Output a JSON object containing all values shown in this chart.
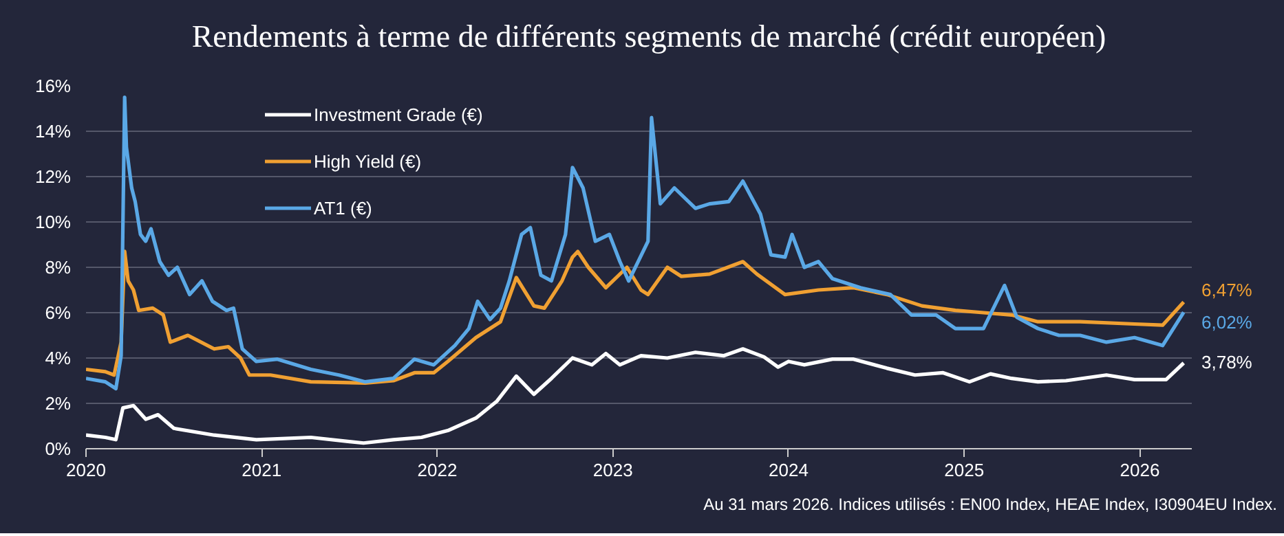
{
  "chart_data": {
    "type": "line",
    "title": "Rendements à terme de différents segments de marché (crédit européen)",
    "xlim": [
      2020,
      2026.3
    ],
    "xticks": [
      2020,
      2021,
      2022,
      2023,
      2024,
      2025,
      2026
    ],
    "ylim": [
      0,
      16
    ],
    "yticks": [
      {
        "value": 0,
        "label": "0%"
      },
      {
        "value": 2,
        "label": "2%"
      },
      {
        "value": 4,
        "label": "4%"
      },
      {
        "value": 6,
        "label": "6%"
      },
      {
        "value": 8,
        "label": "8%"
      },
      {
        "value": 10,
        "label": "10%"
      },
      {
        "value": 12,
        "label": "12%"
      },
      {
        "value": 14,
        "label": "14%"
      },
      {
        "value": 16,
        "label": "16%"
      }
    ],
    "grid": "y",
    "legend": "top left",
    "line_style": "solid",
    "series": [
      {
        "name": "Investment Grade (€)",
        "color": "#ffffff",
        "x": [
          2020,
          2020.11,
          2020.17,
          2020.21,
          2020.27,
          2020.34,
          2020.41,
          2020.5,
          2020.73,
          2020.97,
          2021.28,
          2021.58,
          2021.75,
          2021.91,
          2022.06,
          2022.22,
          2022.34,
          2022.45,
          2022.55,
          2022.65,
          2022.77,
          2022.88,
          2022.96,
          2023.04,
          2023.16,
          2023.31,
          2023.47,
          2023.63,
          2023.74,
          2023.86,
          2023.94,
          2024.0,
          2024.09,
          2024.25,
          2024.37,
          2024.56,
          2024.72,
          2024.88,
          2025.03,
          2025.15,
          2025.27,
          2025.42,
          2025.58,
          2025.81,
          2025.97,
          2026.15,
          2026.25
        ],
        "values": [
          0.6,
          0.5,
          0.4,
          1.8,
          1.9,
          1.3,
          1.5,
          0.9,
          0.6,
          0.4,
          0.5,
          0.25,
          0.4,
          0.5,
          0.8,
          1.35,
          2.1,
          3.2,
          2.4,
          3.1,
          4.0,
          3.7,
          4.2,
          3.7,
          4.1,
          4.0,
          4.25,
          4.1,
          4.4,
          4.05,
          3.6,
          3.85,
          3.7,
          3.95,
          3.95,
          3.55,
          3.25,
          3.35,
          2.95,
          3.3,
          3.1,
          2.95,
          3.0,
          3.25,
          3.05,
          3.05,
          3.78
        ],
        "value_labels": [
          null,
          null,
          null,
          null,
          null,
          null,
          null,
          null,
          null,
          null,
          null,
          null,
          null,
          null,
          null,
          null,
          null,
          null,
          null,
          null,
          null,
          null,
          null,
          null,
          null,
          null,
          null,
          null,
          null,
          null,
          null,
          null,
          null,
          null,
          null,
          null,
          null,
          null,
          null,
          null,
          null,
          null,
          null,
          null,
          null,
          null,
          "3,78%"
        ]
      },
      {
        "name": "High Yield (€)",
        "color": "#f0a032",
        "x": [
          2020,
          2020.11,
          2020.16,
          2020.2,
          2020.22,
          2020.24,
          2020.27,
          2020.3,
          2020.38,
          2020.44,
          2020.48,
          2020.58,
          2020.73,
          2020.81,
          2020.88,
          2020.93,
          2021.05,
          2021.28,
          2021.59,
          2021.75,
          2021.87,
          2021.98,
          2022.06,
          2022.22,
          2022.36,
          2022.45,
          2022.55,
          2022.61,
          2022.71,
          2022.77,
          2022.8,
          2022.86,
          2022.96,
          2023.08,
          2023.16,
          2023.2,
          2023.31,
          2023.39,
          2023.55,
          2023.74,
          2023.82,
          2023.98,
          2024.17,
          2024.37,
          2024.56,
          2024.76,
          2024.95,
          2025.11,
          2025.27,
          2025.42,
          2025.66,
          2025.97,
          2026.13,
          2026.25
        ],
        "values": [
          3.5,
          3.4,
          3.25,
          4.7,
          8.7,
          7.4,
          7.0,
          6.1,
          6.2,
          5.9,
          4.7,
          5.0,
          4.4,
          4.5,
          4.0,
          3.25,
          3.25,
          2.95,
          2.9,
          3.0,
          3.35,
          3.35,
          3.85,
          4.9,
          5.6,
          7.55,
          6.3,
          6.2,
          7.4,
          8.45,
          8.7,
          8.0,
          7.1,
          8.0,
          7.0,
          6.8,
          8.0,
          7.6,
          7.7,
          8.25,
          7.7,
          6.8,
          7.0,
          7.1,
          6.8,
          6.3,
          6.1,
          6.0,
          5.9,
          5.6,
          5.6,
          5.5,
          5.45,
          6.47
        ],
        "value_labels": [
          null,
          null,
          null,
          null,
          null,
          null,
          null,
          null,
          null,
          null,
          null,
          null,
          null,
          null,
          null,
          null,
          null,
          null,
          null,
          null,
          null,
          null,
          null,
          null,
          null,
          null,
          null,
          null,
          null,
          null,
          null,
          null,
          null,
          null,
          null,
          null,
          null,
          null,
          null,
          null,
          null,
          null,
          null,
          null,
          null,
          null,
          null,
          null,
          null,
          null,
          null,
          null,
          null,
          "6,47%"
        ]
      },
      {
        "name": "AT1 (€)",
        "color": "#5aa8e6",
        "x": [
          2020,
          2020.11,
          2020.17,
          2020.2,
          2020.22,
          2020.23,
          2020.26,
          2020.28,
          2020.31,
          2020.34,
          2020.37,
          2020.42,
          2020.47,
          2020.52,
          2020.59,
          2020.66,
          2020.72,
          2020.8,
          2020.84,
          2020.89,
          2020.97,
          2021.09,
          2021.28,
          2021.44,
          2021.59,
          2021.75,
          2021.87,
          2021.98,
          2022.1,
          2022.18,
          2022.23,
          2022.3,
          2022.36,
          2022.41,
          2022.48,
          2022.53,
          2022.59,
          2022.65,
          2022.73,
          2022.77,
          2022.83,
          2022.9,
          2022.98,
          2023.04,
          2023.09,
          2023.2,
          2023.22,
          2023.27,
          2023.35,
          2023.47,
          2023.55,
          2023.66,
          2023.74,
          2023.84,
          2023.9,
          2023.98,
          2024.02,
          2024.09,
          2024.17,
          2024.25,
          2024.41,
          2024.58,
          2024.7,
          2024.84,
          2024.95,
          2025.11,
          2025.23,
          2025.3,
          2025.42,
          2025.54,
          2025.66,
          2025.81,
          2025.97,
          2026.13,
          2026.25
        ],
        "values": [
          3.1,
          2.95,
          2.65,
          4.1,
          15.5,
          13.3,
          11.5,
          10.9,
          9.45,
          9.15,
          9.7,
          8.25,
          7.65,
          8.0,
          6.8,
          7.4,
          6.5,
          6.1,
          6.2,
          4.4,
          3.85,
          3.95,
          3.5,
          3.25,
          2.95,
          3.1,
          3.95,
          3.7,
          4.55,
          5.3,
          6.5,
          5.7,
          6.2,
          7.4,
          9.45,
          9.75,
          7.65,
          7.4,
          9.45,
          12.4,
          11.5,
          9.15,
          9.45,
          8.25,
          7.4,
          9.15,
          14.6,
          10.8,
          11.5,
          10.6,
          10.8,
          10.9,
          11.8,
          10.35,
          8.55,
          8.45,
          9.45,
          8.0,
          8.25,
          7.5,
          7.1,
          6.8,
          5.9,
          5.9,
          5.3,
          5.3,
          7.2,
          5.8,
          5.3,
          5.0,
          5.0,
          4.7,
          4.9,
          4.55,
          6.02
        ],
        "value_labels": [
          null,
          null,
          null,
          null,
          null,
          null,
          null,
          null,
          null,
          null,
          null,
          null,
          null,
          null,
          null,
          null,
          null,
          null,
          null,
          null,
          null,
          null,
          null,
          null,
          null,
          null,
          null,
          null,
          null,
          null,
          null,
          null,
          null,
          null,
          null,
          null,
          null,
          null,
          null,
          null,
          null,
          null,
          null,
          null,
          null,
          null,
          null,
          null,
          null,
          null,
          null,
          null,
          null,
          null,
          null,
          null,
          null,
          null,
          null,
          null,
          null,
          null,
          null,
          null,
          null,
          null,
          null,
          null,
          null,
          null,
          null,
          null,
          null,
          null,
          "6,02%"
        ]
      }
    ],
    "annotations": [
      "Au 31 mars 2026. Indices utilisés : EN00 Index, HEAE Index, I30904EU Index."
    ]
  }
}
